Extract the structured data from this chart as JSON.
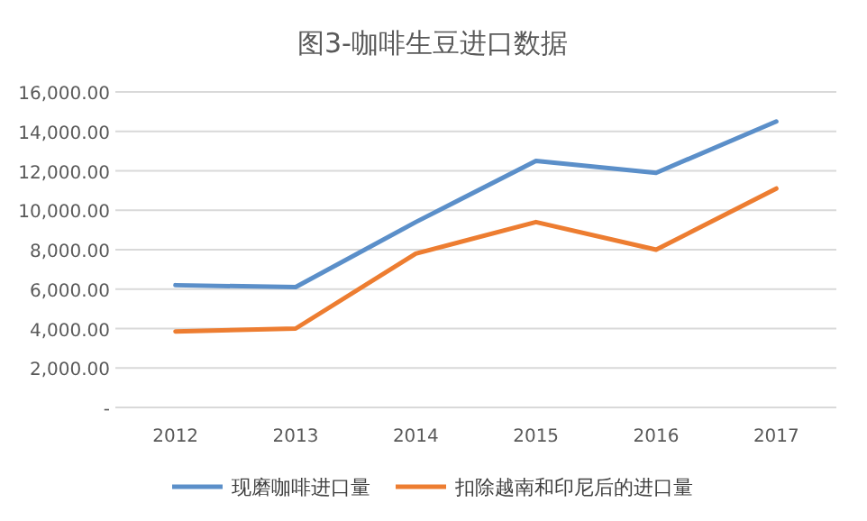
{
  "chart_data": {
    "type": "line",
    "title": "图3-咖啡生豆进口数据",
    "categories": [
      "2012",
      "2013",
      "2014",
      "2015",
      "2016",
      "2017"
    ],
    "series": [
      {
        "name": "现磨咖啡进口量",
        "color": "#5b8fc9",
        "values": [
          6200,
          6100,
          9400,
          12500,
          11900,
          14500
        ]
      },
      {
        "name": "扣除越南和印尼后的进口量",
        "color": "#ed7d31",
        "values": [
          3850,
          4000,
          7800,
          9400,
          8000,
          11100
        ]
      }
    ],
    "ylim": [
      0,
      16000
    ],
    "yticks": [
      {
        "value": 0,
        "label": "-"
      },
      {
        "value": 2000,
        "label": "2,000.00"
      },
      {
        "value": 4000,
        "label": "4,000.00"
      },
      {
        "value": 6000,
        "label": "6,000.00"
      },
      {
        "value": 8000,
        "label": "8,000.00"
      },
      {
        "value": 10000,
        "label": "10,000.00"
      },
      {
        "value": 12000,
        "label": "12,000.00"
      },
      {
        "value": 14000,
        "label": "14,000.00"
      },
      {
        "value": 16000,
        "label": "16,000.00"
      }
    ],
    "grid": "y",
    "legend": "bottom"
  }
}
